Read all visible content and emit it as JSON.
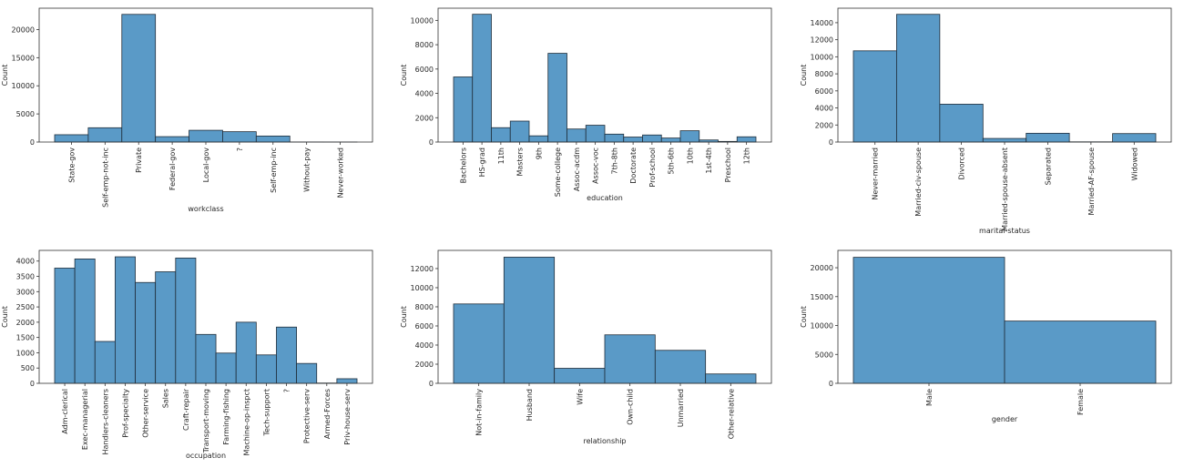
{
  "colors": {
    "bar_fill": "#5a9ac7",
    "bar_stroke": "#1f2d3a",
    "axis": "#333333"
  },
  "chart_data": [
    {
      "type": "bar",
      "xlabel": "workclass",
      "ylabel": "Count",
      "categories": [
        "State-gov",
        "Self-emp-not-inc",
        "Private",
        "Federal-gov",
        "Local-gov",
        "?",
        "Self-emp-inc",
        "Without-pay",
        "Never-worked"
      ],
      "values": [
        1300,
        2540,
        22700,
        960,
        2090,
        1840,
        1070,
        14,
        7
      ],
      "ylim": [
        0,
        23800
      ],
      "yticks": [
        0,
        5000,
        10000,
        15000,
        20000
      ]
    },
    {
      "type": "bar",
      "xlabel": "education",
      "ylabel": "Count",
      "categories": [
        "Bachelors",
        "HS-grad",
        "11th",
        "Masters",
        "9th",
        "Some-college",
        "Assoc-acdm",
        "Assoc-voc",
        "7th-8th",
        "Doctorate",
        "Prof-school",
        "5th-6th",
        "10th",
        "1st-4th",
        "Preschool",
        "12th"
      ],
      "values": [
        5350,
        10500,
        1180,
        1720,
        510,
        7290,
        1070,
        1380,
        650,
        410,
        580,
        330,
        930,
        170,
        50,
        430
      ],
      "ylim": [
        0,
        11000
      ],
      "yticks": [
        0,
        2000,
        4000,
        6000,
        8000,
        10000
      ]
    },
    {
      "type": "bar",
      "xlabel": "marital-status",
      "ylabel": "Count",
      "categories": [
        "Never-married",
        "Married-civ-spouse",
        "Divorced",
        "Married-spouse-absent",
        "Separated",
        "Married-AF-spouse",
        "Widowed"
      ],
      "values": [
        10700,
        14980,
        4440,
        420,
        1030,
        23,
        990
      ],
      "ylim": [
        0,
        15700
      ],
      "yticks": [
        0,
        2000,
        4000,
        6000,
        8000,
        10000,
        12000,
        14000
      ]
    },
    {
      "type": "bar",
      "xlabel": "occupation",
      "ylabel": "Count",
      "categories": [
        "Adm-clerical",
        "Exec-managerial",
        "Handlers-cleaners",
        "Prof-specialty",
        "Other-service",
        "Sales",
        "Craft-repair",
        "Transport-moving",
        "Farming-fishing",
        "Machine-op-inspct",
        "Tech-support",
        "?",
        "Protective-serv",
        "Armed-Forces",
        "Priv-house-serv"
      ],
      "values": [
        3770,
        4070,
        1370,
        4140,
        3300,
        3650,
        4100,
        1600,
        990,
        2000,
        930,
        1840,
        650,
        9,
        150
      ],
      "ylim": [
        0,
        4350
      ],
      "yticks": [
        0,
        500,
        1000,
        1500,
        2000,
        2500,
        3000,
        3500,
        4000
      ]
    },
    {
      "type": "bar",
      "xlabel": "relationship",
      "ylabel": "Count",
      "categories": [
        "Not-in-family",
        "Husband",
        "Wife",
        "Own-child",
        "Unmarried",
        "Other-relative"
      ],
      "values": [
        8300,
        13190,
        1570,
        5070,
        3450,
        980
      ],
      "ylim": [
        0,
        13900
      ],
      "yticks": [
        0,
        2000,
        4000,
        6000,
        8000,
        10000,
        12000
      ]
    },
    {
      "type": "bar",
      "xlabel": "gender",
      "ylabel": "Count",
      "categories": [
        "Male",
        "Female"
      ],
      "values": [
        21800,
        10770
      ],
      "ylim": [
        0,
        23000
      ],
      "yticks": [
        0,
        5000,
        10000,
        15000,
        20000
      ]
    }
  ]
}
